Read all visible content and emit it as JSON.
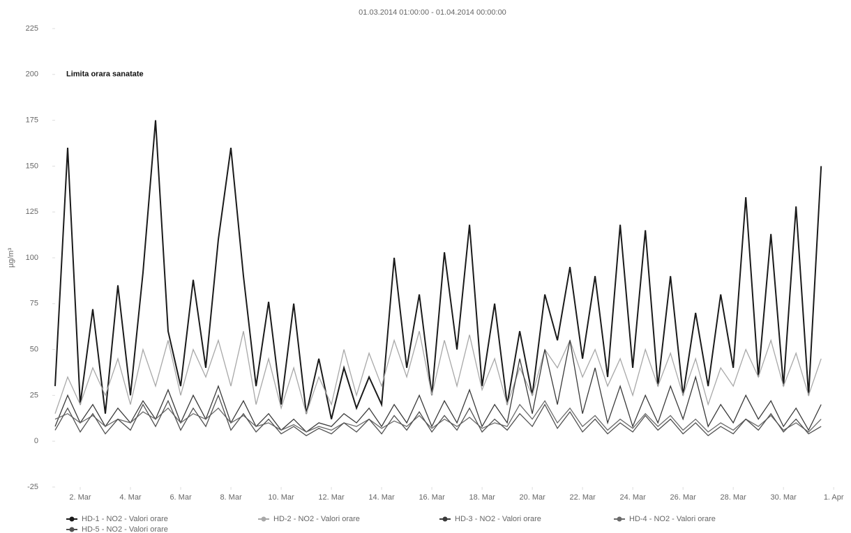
{
  "chart_data": {
    "type": "line",
    "title": "01.03.2014 01:00:00 - 01.04.2014 00:00:00",
    "y_label": "µg/m³",
    "annotations": [
      {
        "text": "Limita orara sanatate",
        "y": 200
      }
    ],
    "x": [
      0,
      0.5,
      1,
      1.5,
      2,
      2.5,
      3,
      3.5,
      4,
      4.5,
      5,
      5.5,
      6,
      6.5,
      7,
      7.5,
      8,
      8.5,
      9,
      9.5,
      10,
      10.5,
      11,
      11.5,
      12,
      12.5,
      13,
      13.5,
      14,
      14.5,
      15,
      15.5,
      16,
      16.5,
      17,
      17.5,
      18,
      18.5,
      19,
      19.5,
      20,
      20.5,
      21,
      21.5,
      22,
      22.5,
      23,
      23.5,
      24,
      24.5,
      25,
      25.5,
      26,
      26.5,
      27,
      27.5,
      28,
      28.5,
      29,
      29.5,
      30,
      30.5
    ],
    "xlim": [
      0,
      31.3
    ],
    "xticks": [
      {
        "value": 1,
        "label": "2. Mar"
      },
      {
        "value": 3,
        "label": "4. Mar"
      },
      {
        "value": 5,
        "label": "6. Mar"
      },
      {
        "value": 7,
        "label": "8. Mar"
      },
      {
        "value": 9,
        "label": "10. Mar"
      },
      {
        "value": 11,
        "label": "12. Mar"
      },
      {
        "value": 13,
        "label": "14. Mar"
      },
      {
        "value": 15,
        "label": "16. Mar"
      },
      {
        "value": 17,
        "label": "18. Mar"
      },
      {
        "value": 19,
        "label": "20. Mar"
      },
      {
        "value": 21,
        "label": "22. Mar"
      },
      {
        "value": 23,
        "label": "24. Mar"
      },
      {
        "value": 25,
        "label": "26. Mar"
      },
      {
        "value": 27,
        "label": "28. Mar"
      },
      {
        "value": 29,
        "label": "30. Mar"
      },
      {
        "value": 31,
        "label": "1. Apr"
      }
    ],
    "ylim": [
      -25,
      225
    ],
    "yticks": [
      -25,
      0,
      25,
      50,
      75,
      100,
      125,
      150,
      175,
      200,
      225
    ],
    "grid": false,
    "legend": "bottom",
    "series": [
      {
        "name": "HD-1 - NO2 - Valori orare",
        "color": "#1a1a1a",
        "values": [
          30,
          160,
          20,
          72,
          15,
          85,
          25,
          92,
          175,
          60,
          30,
          88,
          40,
          110,
          160,
          90,
          30,
          76,
          20,
          75,
          15,
          45,
          12,
          40,
          18,
          35,
          20,
          100,
          40,
          80,
          25,
          103,
          50,
          118,
          30,
          75,
          20,
          60,
          25,
          80,
          55,
          95,
          45,
          90,
          35,
          118,
          40,
          115,
          30,
          90,
          25,
          70,
          30,
          80,
          40,
          133,
          35,
          113,
          30,
          128,
          25,
          150
        ]
      },
      {
        "name": "HD-2 - NO2 - Valori orare",
        "color": "#a8a8a8",
        "values": [
          15,
          35,
          20,
          40,
          25,
          45,
          20,
          50,
          30,
          55,
          25,
          50,
          35,
          55,
          30,
          60,
          20,
          45,
          18,
          40,
          15,
          35,
          20,
          50,
          25,
          48,
          30,
          55,
          35,
          60,
          25,
          55,
          30,
          58,
          28,
          45,
          20,
          40,
          25,
          50,
          40,
          55,
          35,
          50,
          30,
          45,
          25,
          50,
          30,
          48,
          25,
          45,
          20,
          40,
          30,
          50,
          35,
          55,
          30,
          48,
          25,
          45
        ]
      },
      {
        "name": "HD-3 - NO2 - Valori orare",
        "color": "#3a3a3a",
        "values": [
          8,
          25,
          10,
          20,
          8,
          18,
          10,
          22,
          12,
          28,
          10,
          25,
          12,
          30,
          10,
          22,
          8,
          15,
          6,
          12,
          5,
          10,
          8,
          15,
          10,
          18,
          8,
          20,
          10,
          25,
          8,
          22,
          10,
          28,
          8,
          20,
          10,
          45,
          15,
          50,
          20,
          55,
          15,
          40,
          10,
          30,
          8,
          25,
          10,
          30,
          12,
          35,
          8,
          20,
          10,
          25,
          12,
          22,
          8,
          18,
          6,
          20
        ]
      },
      {
        "name": "HD-4 - NO2 - Valori orare",
        "color": "#6a6a6a",
        "values": [
          12,
          15,
          10,
          14,
          8,
          12,
          10,
          16,
          12,
          18,
          10,
          15,
          12,
          18,
          10,
          14,
          8,
          10,
          6,
          9,
          5,
          8,
          6,
          10,
          8,
          12,
          7,
          11,
          8,
          14,
          7,
          12,
          8,
          13,
          7,
          10,
          8,
          20,
          12,
          22,
          10,
          18,
          8,
          14,
          6,
          12,
          7,
          15,
          8,
          14,
          6,
          12,
          5,
          10,
          6,
          12,
          8,
          14,
          6,
          10,
          5,
          12
        ]
      },
      {
        "name": "HD-5 - NO2 - Valori orare",
        "color": "#505050",
        "values": [
          6,
          18,
          5,
          15,
          4,
          12,
          6,
          20,
          8,
          22,
          6,
          18,
          8,
          25,
          6,
          15,
          5,
          12,
          4,
          8,
          3,
          7,
          4,
          10,
          5,
          12,
          4,
          14,
          6,
          16,
          5,
          14,
          6,
          18,
          5,
          12,
          6,
          15,
          8,
          20,
          7,
          16,
          5,
          12,
          4,
          10,
          5,
          14,
          6,
          12,
          4,
          10,
          3,
          8,
          4,
          12,
          6,
          15,
          5,
          12,
          4,
          8
        ]
      }
    ]
  }
}
